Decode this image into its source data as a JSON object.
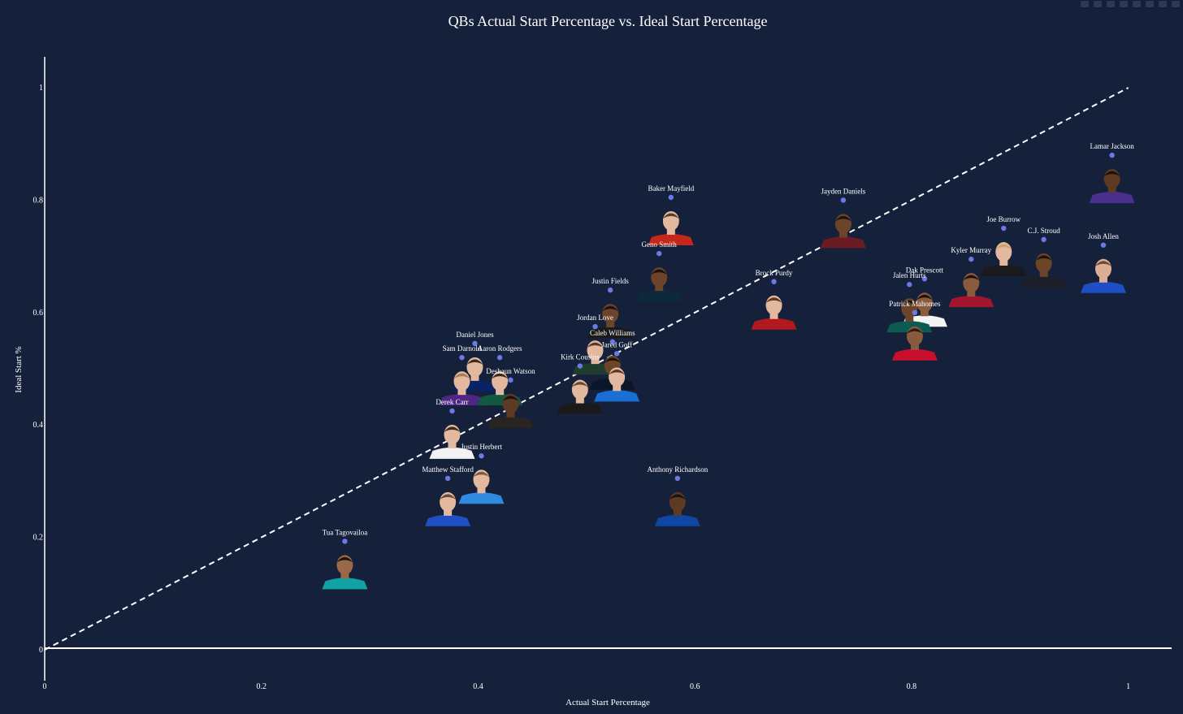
{
  "chart_data": {
    "type": "scatter",
    "title": "QBs Actual Start Percentage vs. Ideal Start Percentage",
    "xlabel": "Actual Start Percentage",
    "ylabel": "Ideal Start %",
    "xlim": [
      0,
      1.04
    ],
    "ylim": [
      -0.055,
      1.055
    ],
    "x_ticks": [
      0,
      0.2,
      0.4,
      0.6,
      0.8,
      1
    ],
    "x_tick_labels": [
      "0",
      "0.2",
      "0.4",
      "0.6",
      "0.8",
      "1"
    ],
    "y_ticks": [
      0,
      0.2,
      0.4,
      0.6,
      0.8,
      1
    ],
    "y_tick_labels": [
      "0",
      "0.2",
      "0.4",
      "0.6",
      "0.8",
      "1"
    ],
    "reference_line": {
      "from": [
        0,
        0
      ],
      "to": [
        1,
        1
      ],
      "style": "dashed"
    },
    "grid": false,
    "colors": {
      "background": "#15213a",
      "marker": "#6a79e6",
      "text": "#ffffff",
      "reference_line": "#ffffff"
    },
    "points": [
      {
        "name": "Lamar Jackson",
        "x": 0.985,
        "y": 0.88,
        "jersey": "#4a2f8f",
        "skin": "#5c3a24",
        "hair": "#1a120c"
      },
      {
        "name": "Josh Allen",
        "x": 0.977,
        "y": 0.72,
        "jersey": "#1f4fc4",
        "skin": "#dcae94",
        "hair": "#6a4a32"
      },
      {
        "name": "C.J. Stroud",
        "x": 0.922,
        "y": 0.73,
        "jersey": "#1e1e2a",
        "skin": "#6b442a",
        "hair": "#1a120c"
      },
      {
        "name": "Joe Burrow",
        "x": 0.885,
        "y": 0.75,
        "jersey": "#1a1a1a",
        "skin": "#e2b89e",
        "hair": "#caa46a"
      },
      {
        "name": "Kyler Murray",
        "x": 0.855,
        "y": 0.695,
        "jersey": "#a3162e",
        "skin": "#8a5a3c",
        "hair": "#1a120c"
      },
      {
        "name": "Dak Prescott",
        "x": 0.812,
        "y": 0.66,
        "jersey": "#f4f4f4",
        "skin": "#8a5a3c",
        "hair": "#1a120c"
      },
      {
        "name": "Jalen Hurts",
        "x": 0.798,
        "y": 0.65,
        "jersey": "#0b5b53",
        "skin": "#6b442a",
        "hair": "#1a120c"
      },
      {
        "name": "Patrick Mahomes",
        "x": 0.803,
        "y": 0.6,
        "jersey": "#c8102e",
        "skin": "#8a5a3c",
        "hair": "#2a1a10"
      },
      {
        "name": "Jayden Daniels",
        "x": 0.737,
        "y": 0.8,
        "jersey": "#6b1c22",
        "skin": "#6b442a",
        "hair": "#1a120c"
      },
      {
        "name": "Brock Purdy",
        "x": 0.673,
        "y": 0.655,
        "jersey": "#b3191c",
        "skin": "#e2b89e",
        "hair": "#5a3a22"
      },
      {
        "name": "Baker Mayfield",
        "x": 0.578,
        "y": 0.805,
        "jersey": "#c4281c",
        "skin": "#e2b89e",
        "hair": "#5a3a22"
      },
      {
        "name": "Geno Smith",
        "x": 0.567,
        "y": 0.705,
        "jersey": "#0c2a3a",
        "skin": "#6b442a",
        "hair": "#1a120c"
      },
      {
        "name": "Anthony Richardson",
        "x": 0.584,
        "y": 0.305,
        "jersey": "#0d46a3",
        "skin": "#5c3a24",
        "hair": "#1a120c"
      },
      {
        "name": "Justin Fields",
        "x": 0.522,
        "y": 0.64,
        "jersey": "#1a1a1a",
        "skin": "#6b442a",
        "hair": "#1a120c"
      },
      {
        "name": "Jordan Love",
        "x": 0.508,
        "y": 0.575,
        "jersey": "#1f3d2e",
        "skin": "#e2b89e",
        "hair": "#5a3a22"
      },
      {
        "name": "Caleb Williams",
        "x": 0.524,
        "y": 0.548,
        "jersey": "#0b162a",
        "skin": "#6b442a",
        "hair": "#1a120c"
      },
      {
        "name": "Kirk Cousins",
        "x": 0.494,
        "y": 0.505,
        "jersey": "#1a1a1a",
        "skin": "#e2b89e",
        "hair": "#6a4a32"
      },
      {
        "name": "Jared Goff",
        "x": 0.528,
        "y": 0.527,
        "jersey": "#1a6fd4",
        "skin": "#e2b89e",
        "hair": "#5a3a22"
      },
      {
        "name": "Daniel Jones",
        "x": 0.397,
        "y": 0.545,
        "jersey": "#0b2265",
        "skin": "#e2b89e",
        "hair": "#3a2a1a"
      },
      {
        "name": "Sam Darnold",
        "x": 0.385,
        "y": 0.52,
        "jersey": "#4f2683",
        "skin": "#e2b89e",
        "hair": "#a67c52"
      },
      {
        "name": "Aaron Rodgers",
        "x": 0.42,
        "y": 0.52,
        "jersey": "#125740",
        "skin": "#e2b89e",
        "hair": "#3a2a1a"
      },
      {
        "name": "Deshaun Watson",
        "x": 0.43,
        "y": 0.48,
        "jersey": "#2a2420",
        "skin": "#5c3a24",
        "hair": "#1a120c"
      },
      {
        "name": "Derek Carr",
        "x": 0.376,
        "y": 0.425,
        "jersey": "#f2f2f2",
        "skin": "#e2b89e",
        "hair": "#3a2a1a"
      },
      {
        "name": "Justin Herbert",
        "x": 0.403,
        "y": 0.345,
        "jersey": "#2f8ae0",
        "skin": "#e2b89e",
        "hair": "#7a5a3a"
      },
      {
        "name": "Matthew Stafford",
        "x": 0.372,
        "y": 0.305,
        "jersey": "#1f4fc4",
        "skin": "#e2b89e",
        "hair": "#6a4a32"
      },
      {
        "name": "Tua Tagovailoa",
        "x": 0.277,
        "y": 0.193,
        "jersey": "#0fa3a3",
        "skin": "#9a6a48",
        "hair": "#1a120c"
      }
    ]
  }
}
